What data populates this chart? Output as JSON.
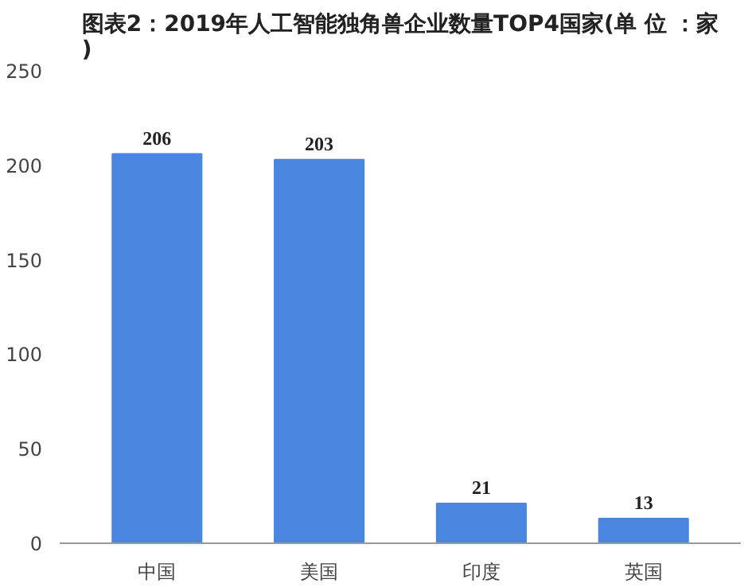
{
  "chart_data": {
    "type": "bar",
    "title": "图表2：2019年人工智能独角兽企业数量TOP4国家(单 位 ：家)",
    "categories": [
      "中国",
      "美国",
      "印度",
      "英国"
    ],
    "values": [
      206,
      203,
      21,
      13
    ],
    "color": "#4a86e0",
    "ylim": [
      0,
      250
    ],
    "yticks": [
      0,
      50,
      100,
      150,
      200,
      250
    ],
    "grid": false,
    "data_labels": true
  }
}
